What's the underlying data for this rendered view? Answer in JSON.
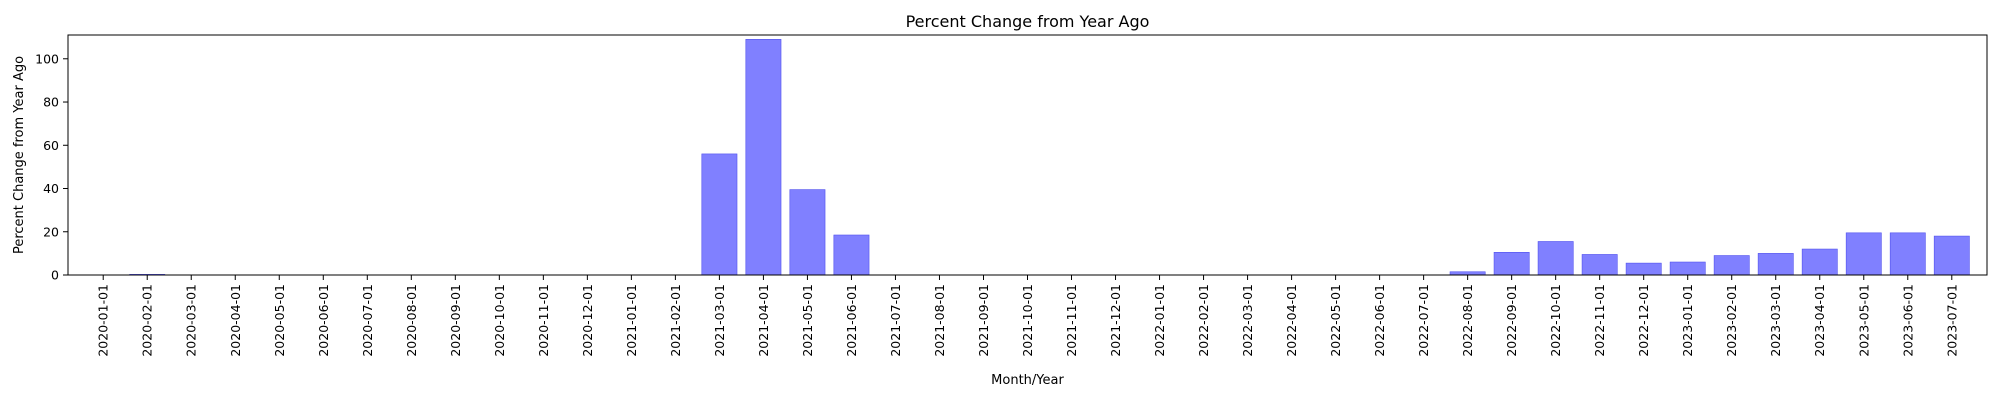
{
  "chart_data": {
    "type": "bar",
    "title": "Percent Change from Year Ago",
    "xlabel": "Month/Year",
    "ylabel": "Percent Change from Year Ago",
    "ylim": [
      0,
      111
    ],
    "yticks": [
      0,
      20,
      40,
      60,
      80,
      100
    ],
    "grid": false,
    "legend": "none",
    "bar_color": "#8080ff",
    "categories": [
      "2020-01-01",
      "2020-02-01",
      "2020-03-01",
      "2020-04-01",
      "2020-05-01",
      "2020-06-01",
      "2020-07-01",
      "2020-08-01",
      "2020-09-01",
      "2020-10-01",
      "2020-11-01",
      "2020-12-01",
      "2021-01-01",
      "2021-02-01",
      "2021-03-01",
      "2021-04-01",
      "2021-05-01",
      "2021-06-01",
      "2021-07-01",
      "2021-08-01",
      "2021-09-01",
      "2021-10-01",
      "2021-11-01",
      "2021-12-01",
      "2022-01-01",
      "2022-02-01",
      "2022-03-01",
      "2022-04-01",
      "2022-05-01",
      "2022-06-01",
      "2022-07-01",
      "2022-08-01",
      "2022-09-01",
      "2022-10-01",
      "2022-11-01",
      "2022-12-01",
      "2023-01-01",
      "2023-02-01",
      "2023-03-01",
      "2023-04-01",
      "2023-05-01",
      "2023-06-01",
      "2023-07-01"
    ],
    "values": [
      0,
      0.3,
      0,
      0,
      0,
      0,
      0,
      0,
      0,
      0,
      0,
      0,
      0,
      0,
      56,
      109,
      39.5,
      18.5,
      0,
      0,
      0,
      0,
      0,
      0,
      0,
      0,
      0,
      0,
      0,
      0,
      0,
      1.5,
      10.5,
      15.5,
      9.5,
      5.5,
      6,
      9,
      10,
      12,
      19.5,
      19.5,
      18
    ]
  }
}
